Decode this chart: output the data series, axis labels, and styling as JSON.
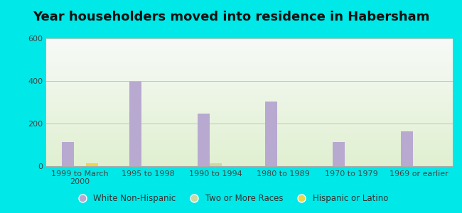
{
  "title": "Year householders moved into residence in Habersham",
  "categories": [
    "1999 to March\n2000",
    "1995 to 1998",
    "1990 to 1994",
    "1980 to 1989",
    "1970 to 1979",
    "1969 or earlier"
  ],
  "series": [
    {
      "name": "White Non-Hispanic",
      "color": "#b8a9d0",
      "values": [
        115,
        398,
        248,
        305,
        115,
        162
      ]
    },
    {
      "name": "Two or More Races",
      "color": "#ccd9a0",
      "values": [
        0,
        0,
        12,
        0,
        0,
        0
      ]
    },
    {
      "name": "Hispanic or Latino",
      "color": "#e8d84a",
      "values": [
        12,
        0,
        0,
        0,
        0,
        0
      ]
    }
  ],
  "ylim": [
    0,
    600
  ],
  "yticks": [
    0,
    200,
    400,
    600
  ],
  "bar_width": 0.18,
  "outer_bg": "#00e8e8",
  "plot_bg_color": "#e8f5e0",
  "title_fontsize": 13,
  "tick_fontsize": 8,
  "legend_fontsize": 8.5
}
